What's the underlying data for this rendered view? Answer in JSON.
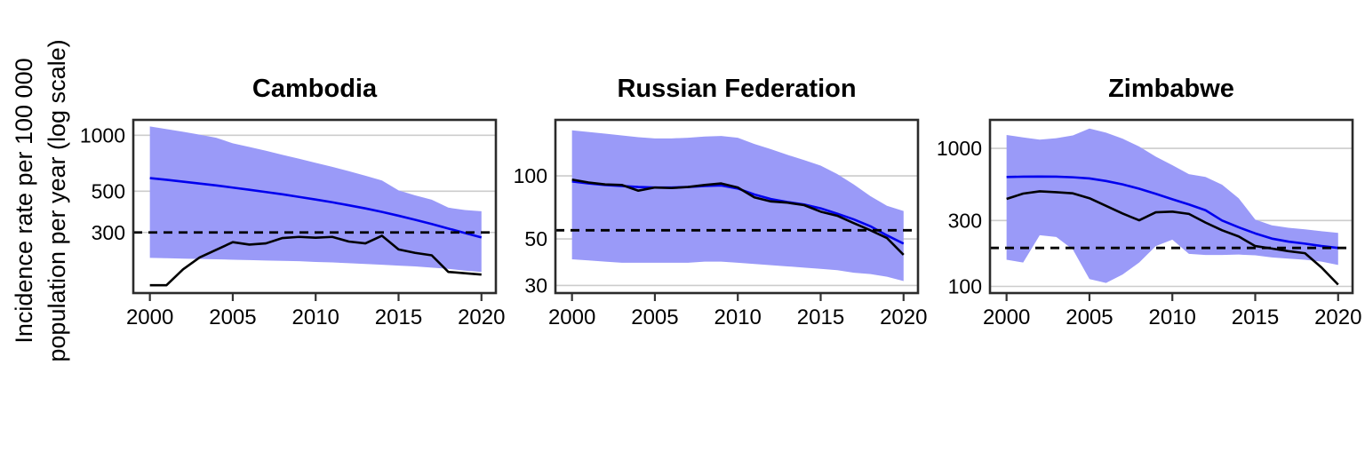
{
  "figure": {
    "ylabel_line1": "Incidence rate per 100 000",
    "ylabel_line2": "population per year (log scale)",
    "colors": {
      "band": "#9a9af8",
      "estimate_line": "#0000ee",
      "notification_line": "#000000",
      "dashed_line": "#000000",
      "gridline": "#cccccc",
      "frame": "#2b2b2b",
      "tick": "#333333",
      "text": "#000000"
    }
  },
  "chart_data": [
    {
      "type": "line",
      "title": "Cambodia",
      "x": [
        2000,
        2001,
        2002,
        2003,
        2004,
        2005,
        2006,
        2007,
        2008,
        2009,
        2010,
        2011,
        2012,
        2013,
        2014,
        2015,
        2016,
        2017,
        2018,
        2019,
        2020
      ],
      "xticks": [
        2000,
        2005,
        2010,
        2015,
        2020
      ],
      "yticks": [
        1000,
        500,
        300
      ],
      "xlim": [
        1999.0,
        2020.87
      ],
      "ylim": [
        141.6,
        1210
      ],
      "dashed_target": 300,
      "series": [
        {
          "name": "estimate_blue",
          "values": [
            588,
            576,
            563,
            550,
            537,
            523,
            509,
            495,
            481,
            466,
            451,
            436,
            420,
            404,
            387,
            369,
            351,
            333,
            315,
            298,
            282
          ]
        },
        {
          "name": "observed_black",
          "values": [
            156,
            156,
            190,
            220,
            242,
            266,
            258,
            262,
            280,
            284,
            281,
            284,
            268,
            262,
            288,
            243,
            233,
            226,
            184,
            181,
            178
          ]
        }
      ],
      "band": {
        "hi": [
          1115,
          1080,
          1045,
          1008,
          970,
          905,
          865,
          825,
          785,
          748,
          711,
          676,
          641,
          606,
          571,
          505,
          475,
          450,
          408,
          396,
          390
        ],
        "lo": [
          219,
          218,
          217,
          216,
          215,
          214,
          213,
          212,
          211,
          210,
          208,
          207,
          205,
          203,
          201,
          199,
          197,
          194,
          191,
          187,
          184
        ]
      }
    },
    {
      "type": "line",
      "title": "Russian Federation",
      "x": [
        2000,
        2001,
        2002,
        2003,
        2004,
        2005,
        2006,
        2007,
        2008,
        2009,
        2010,
        2011,
        2012,
        2013,
        2014,
        2015,
        2016,
        2017,
        2018,
        2019,
        2020
      ],
      "xticks": [
        2000,
        2005,
        2010,
        2015,
        2020
      ],
      "yticks": [
        100,
        50,
        30
      ],
      "xlim": [
        1999.0,
        2020.87
      ],
      "ylim": [
        27.6,
        185
      ],
      "dashed_target": 55,
      "series": [
        {
          "name": "estimate_blue",
          "values": [
            94,
            92,
            90.5,
            89.5,
            88.5,
            88,
            88,
            88.5,
            89.5,
            90,
            87,
            81.5,
            77.5,
            75,
            73,
            70,
            66,
            62,
            57.5,
            52,
            47.5
          ]
        },
        {
          "name": "observed_black",
          "values": [
            96,
            93,
            91,
            90.5,
            85,
            88,
            87.5,
            88.5,
            90.5,
            92,
            88,
            79,
            75.5,
            74.5,
            72.5,
            67.5,
            64.5,
            59.5,
            55,
            50.5,
            42
          ]
        }
      ],
      "band": {
        "hi": [
          165,
          162,
          159,
          156,
          153,
          151,
          151,
          152,
          154,
          155,
          152,
          142,
          134,
          126,
          119,
          112,
          102,
          91,
          80,
          72,
          68
        ],
        "lo": [
          40,
          39.5,
          39,
          38.5,
          38.5,
          38.5,
          38.5,
          38.5,
          39,
          39,
          38.5,
          38,
          37.5,
          37,
          36.5,
          36,
          35.5,
          34.5,
          34,
          33,
          31.5
        ]
      }
    },
    {
      "type": "line",
      "title": "Zimbabwe",
      "x": [
        2000,
        2001,
        2002,
        2003,
        2004,
        2005,
        2006,
        2007,
        2008,
        2009,
        2010,
        2011,
        2012,
        2013,
        2014,
        2015,
        2016,
        2017,
        2018,
        2019,
        2020
      ],
      "xticks": [
        2000,
        2005,
        2010,
        2015,
        2020
      ],
      "yticks": [
        1000,
        300,
        100
      ],
      "xlim": [
        1999.0,
        2020.87
      ],
      "ylim": [
        89.5,
        1607
      ],
      "dashed_target": 190,
      "series": [
        {
          "name": "estimate_blue",
          "values": [
            620,
            623,
            625,
            623,
            617,
            605,
            580,
            548,
            510,
            468,
            428,
            392,
            356,
            300,
            268,
            242,
            222,
            211,
            204,
            196,
            190
          ]
        },
        {
          "name": "observed_black",
          "values": [
            430,
            470,
            488,
            481,
            472,
            435,
            383,
            337,
            301,
            344,
            348,
            335,
            290,
            255,
            230,
            196,
            188,
            180,
            174,
            137,
            103
          ]
        }
      ],
      "band": {
        "hi": [
          1250,
          1200,
          1155,
          1185,
          1240,
          1390,
          1300,
          1175,
          1030,
          870,
          755,
          650,
          620,
          545,
          435,
          305,
          277,
          266,
          259,
          251,
          244
        ],
        "lo": [
          156,
          149,
          235,
          228,
          185,
          113,
          106,
          122,
          149,
          196,
          218,
          172,
          169,
          169,
          170,
          168,
          162,
          159,
          156,
          151,
          143
        ]
      }
    }
  ]
}
